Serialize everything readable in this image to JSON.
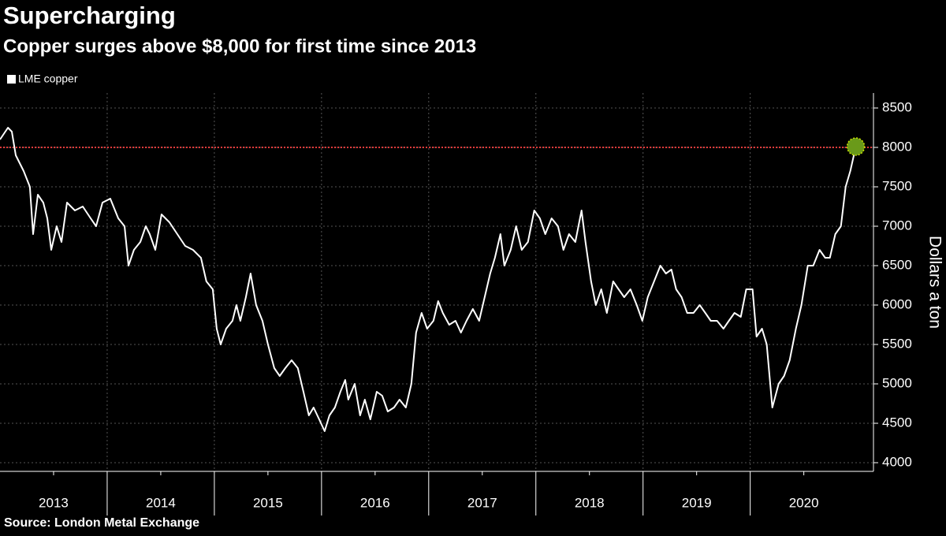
{
  "chart_data": {
    "type": "line",
    "title": "Supercharging",
    "subtitle": "Copper surges above $8,000 for first time since 2013",
    "source": "Source: London Metal Exchange",
    "y_axis_label": "Dollars a ton",
    "xlim": [
      2013,
      2021.15
    ],
    "ylim": [
      3890,
      8690
    ],
    "yticks": [
      4000,
      4500,
      5000,
      5500,
      6000,
      6500,
      7000,
      7500,
      8000,
      8500
    ],
    "xticks": [
      {
        "value": 2013.5,
        "label": "2013"
      },
      {
        "value": 2014.5,
        "label": "2014"
      },
      {
        "value": 2015.5,
        "label": "2015"
      },
      {
        "value": 2016.5,
        "label": "2016"
      },
      {
        "value": 2017.5,
        "label": "2017"
      },
      {
        "value": 2018.5,
        "label": "2018"
      },
      {
        "value": 2019.5,
        "label": "2019"
      },
      {
        "value": 2020.5,
        "label": "2020"
      }
    ],
    "xgrid": [
      2014,
      2015,
      2016,
      2017,
      2018,
      2019,
      2020
    ],
    "grid": true,
    "legend": "top-left",
    "reference_line": {
      "value": 8000,
      "color": "#e03a3a"
    },
    "highlight_color": "#6a9a1a",
    "x": [
      2013.0,
      2013.074,
      2013.11,
      2013.147,
      2013.221,
      2013.279,
      2013.309,
      2013.353,
      2013.404,
      2013.441,
      2013.478,
      2013.529,
      2013.574,
      2013.625,
      2013.699,
      2013.772,
      2013.846,
      2013.897,
      2013.956,
      2014.029,
      2014.103,
      2014.162,
      2014.199,
      2014.25,
      2014.309,
      2014.36,
      2014.397,
      2014.449,
      2014.507,
      2014.581,
      2014.654,
      2014.728,
      2014.801,
      2014.875,
      2014.926,
      2014.985,
      2015.022,
      2015.059,
      2015.11,
      2015.169,
      2015.206,
      2015.243,
      2015.294,
      2015.338,
      2015.39,
      2015.449,
      2015.5,
      2015.559,
      2015.61,
      2015.662,
      2015.721,
      2015.779,
      2015.831,
      2015.882,
      2015.926,
      2015.978,
      2016.029,
      2016.074,
      2016.125,
      2016.176,
      2016.221,
      2016.25,
      2016.309,
      2016.36,
      2016.404,
      2016.456,
      2016.515,
      2016.566,
      2016.618,
      2016.676,
      2016.728,
      2016.787,
      2016.838,
      2016.882,
      2016.934,
      2016.985,
      2017.044,
      2017.088,
      2017.132,
      2017.191,
      2017.25,
      2017.301,
      2017.353,
      2017.412,
      2017.471,
      2017.522,
      2017.574,
      2017.618,
      2017.669,
      2017.706,
      2017.765,
      2017.816,
      2017.868,
      2017.926,
      2017.985,
      2018.037,
      2018.088,
      2018.147,
      2018.206,
      2018.257,
      2018.309,
      2018.368,
      2018.426,
      2018.463,
      2018.515,
      2018.559,
      2018.61,
      2018.662,
      2018.721,
      2018.772,
      2018.824,
      2018.882,
      2018.941,
      2018.993,
      2019.044,
      2019.103,
      2019.162,
      2019.213,
      2019.265,
      2019.309,
      2019.36,
      2019.412,
      2019.471,
      2019.529,
      2019.581,
      2019.632,
      2019.691,
      2019.75,
      2019.801,
      2019.853,
      2019.912,
      2019.963,
      2020.022,
      2020.059,
      2020.11,
      2020.154,
      2020.206,
      2020.265,
      2020.316,
      2020.368,
      2020.426,
      2020.478,
      2020.537,
      2020.588,
      2020.647,
      2020.699,
      2020.743,
      2020.794,
      2020.846,
      2020.89,
      2020.934,
      2020.985
    ],
    "series": [
      {
        "name": "LME copper",
        "color": "#ffffff",
        "values": [
          8100,
          8250,
          8200,
          7900,
          7700,
          7500,
          6900,
          7400,
          7300,
          7100,
          6700,
          7000,
          6800,
          7300,
          7200,
          7250,
          7100,
          7000,
          7300,
          7350,
          7100,
          7000,
          6500,
          6700,
          6800,
          7000,
          6900,
          6700,
          7150,
          7050,
          6900,
          6750,
          6700,
          6600,
          6300,
          6200,
          5700,
          5500,
          5700,
          5800,
          6000,
          5800,
          6100,
          6400,
          6000,
          5800,
          5500,
          5200,
          5100,
          5200,
          5300,
          5200,
          4900,
          4600,
          4700,
          4550,
          4400,
          4600,
          4700,
          4900,
          5050,
          4800,
          5000,
          4600,
          4800,
          4550,
          4900,
          4850,
          4650,
          4700,
          4800,
          4700,
          5000,
          5650,
          5900,
          5700,
          5800,
          6050,
          5900,
          5750,
          5800,
          5650,
          5800,
          5950,
          5800,
          6100,
          6400,
          6600,
          6900,
          6500,
          6700,
          7000,
          6700,
          6800,
          7200,
          7100,
          6900,
          7100,
          7000,
          6700,
          6900,
          6800,
          7200,
          6800,
          6300,
          6000,
          6200,
          5900,
          6300,
          6200,
          6100,
          6200,
          6000,
          5800,
          6100,
          6300,
          6500,
          6400,
          6450,
          6200,
          6100,
          5900,
          5900,
          6000,
          5900,
          5800,
          5800,
          5700,
          5800,
          5900,
          5850,
          6200,
          6200,
          5600,
          5700,
          5500,
          4700,
          5000,
          5100,
          5300,
          5700,
          6000,
          6500,
          6500,
          6700,
          6600,
          6600,
          6900,
          7000,
          7500,
          7700,
          8010
        ]
      }
    ]
  }
}
